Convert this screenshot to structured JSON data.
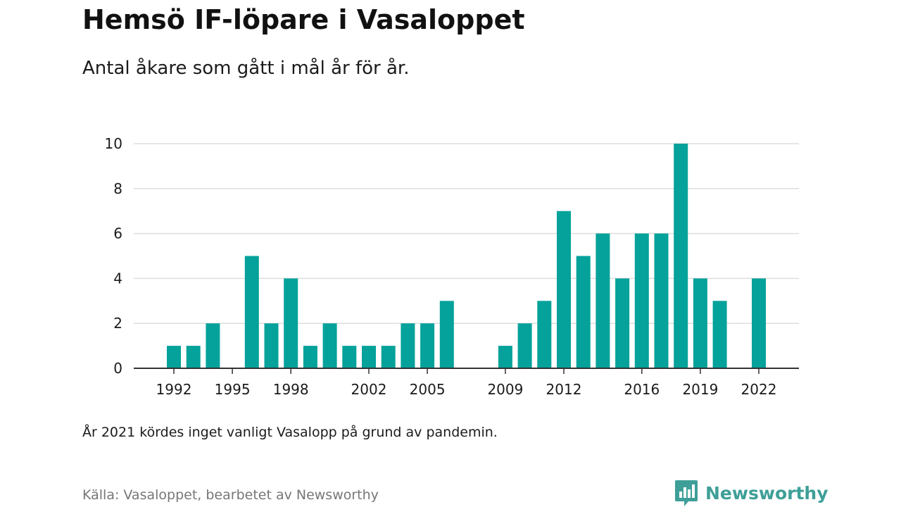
{
  "header": {
    "title": "Hemsö IF-löpare i Vasaloppet",
    "subtitle": "Antal åkare som gått i mål år för år."
  },
  "note": "År 2021 kördes inget vanligt Vasalopp på grund av pandemin.",
  "footer": {
    "source": "Källa: Vasaloppet, bearbetet av Newsworthy",
    "brand": "Newsworthy",
    "brand_icon": "bar-chart-speech-bubble-icon"
  },
  "colors": {
    "bar": "#04a29a",
    "grid": "#dddddd",
    "axis": "#333333",
    "brand": "#3e9f98"
  },
  "chart_data": {
    "type": "bar",
    "x": [
      1992,
      1993,
      1994,
      1995,
      1996,
      1997,
      1998,
      1999,
      2000,
      2001,
      2002,
      2003,
      2004,
      2005,
      2006,
      2007,
      2008,
      2009,
      2010,
      2011,
      2012,
      2013,
      2014,
      2015,
      2016,
      2017,
      2018,
      2019,
      2020,
      2021,
      2022
    ],
    "values": [
      1,
      1,
      2,
      0,
      5,
      2,
      4,
      1,
      2,
      1,
      1,
      1,
      2,
      2,
      3,
      0,
      0,
      1,
      2,
      3,
      7,
      5,
      6,
      4,
      6,
      6,
      10,
      4,
      3,
      0,
      4
    ],
    "x_ticks": [
      1992,
      1995,
      1998,
      2002,
      2005,
      2009,
      2012,
      2016,
      2019,
      2022
    ],
    "y_ticks": [
      0,
      2,
      4,
      6,
      8,
      10
    ],
    "ylim": [
      0,
      10
    ],
    "xlabel": "",
    "ylabel": "",
    "grid": true
  }
}
